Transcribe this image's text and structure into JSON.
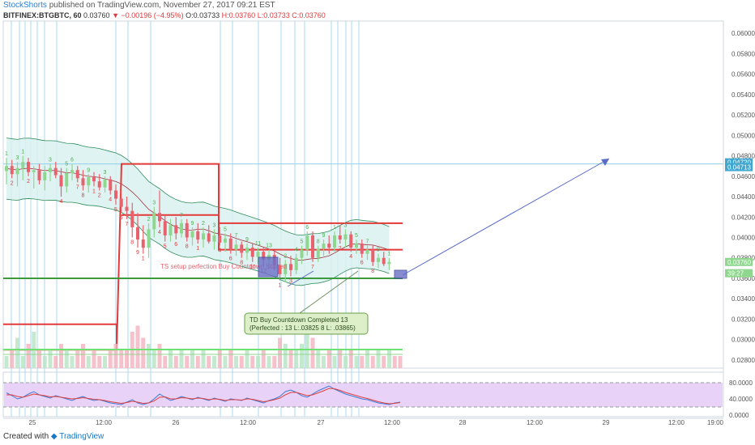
{
  "header": {
    "publisher": "StockShorts",
    "published_text": "published on TradingView.com, November 27, 2017 09:21 EST",
    "symbol": "BITFINEX:BTGBTC, 60",
    "last": "0.03760",
    "change": "▼ −0.00196 (−4.95%)",
    "open": "O:0.03733",
    "high": "H:0.03760",
    "low": "L:0.03733",
    "close": "C:0.03760"
  },
  "footer": {
    "created_with": "Created with",
    "brand": "TradingView"
  },
  "colors": {
    "up": "#8fd68f",
    "down": "#e8626e",
    "band_fill": "#d8f0f0",
    "band_line": "#2e8b57",
    "red_line": "#e23a3a",
    "green_line": "#3e9a3e",
    "vline": "#a9d9f0",
    "arrow": "#5a6bc8",
    "rsi_bg": "#e9d2f7",
    "volume": "#f4b2bd"
  },
  "chart_data": {
    "type": "candlestick",
    "symbol": "BITFINEX:BTGBTC",
    "timeframe": "60",
    "y_ticks": [
      "0.06000",
      "0.05800",
      "0.05600",
      "0.05400",
      "0.05200",
      "0.05000",
      "0.04800",
      "0.04600",
      "0.04400",
      "0.04200",
      "0.04000",
      "0.03800",
      "0.03600",
      "0.03400",
      "0.03200",
      "0.03000",
      "0.02800"
    ],
    "y_price_labels": [
      {
        "value": 0.0472,
        "text": "0.04720",
        "color": "#3fa7d0"
      },
      {
        "value": 0.04713,
        "text": "0.04713",
        "color": "#3fa7d0"
      },
      {
        "value": 0.0376,
        "text": "0.03760",
        "color": "#8fd68f"
      },
      {
        "value": 0.0365,
        "text": "39:27",
        "color": "#8fd68f"
      }
    ],
    "x_ticks": [
      "25",
      "12:00",
      "26",
      "12:00",
      "27",
      "12:00",
      "28",
      "12:00",
      "29",
      "12:00",
      "19:00"
    ],
    "candles": [
      {
        "o": 0.0465,
        "h": 0.0478,
        "l": 0.0452,
        "c": 0.047
      },
      {
        "o": 0.047,
        "h": 0.0476,
        "l": 0.0458,
        "c": 0.0462
      },
      {
        "o": 0.0462,
        "h": 0.0474,
        "l": 0.045,
        "c": 0.0468
      },
      {
        "o": 0.0468,
        "h": 0.048,
        "l": 0.0456,
        "c": 0.0474
      },
      {
        "o": 0.0474,
        "h": 0.0478,
        "l": 0.046,
        "c": 0.0464
      },
      {
        "o": 0.0464,
        "h": 0.047,
        "l": 0.0448,
        "c": 0.0466
      },
      {
        "o": 0.0466,
        "h": 0.0472,
        "l": 0.0452,
        "c": 0.0456
      },
      {
        "o": 0.0456,
        "h": 0.047,
        "l": 0.0446,
        "c": 0.0464
      },
      {
        "o": 0.0464,
        "h": 0.0472,
        "l": 0.0455,
        "c": 0.0468
      },
      {
        "o": 0.0468,
        "h": 0.0474,
        "l": 0.0458,
        "c": 0.0461
      },
      {
        "o": 0.0461,
        "h": 0.0468,
        "l": 0.044,
        "c": 0.045
      },
      {
        "o": 0.045,
        "h": 0.0468,
        "l": 0.0444,
        "c": 0.0463
      },
      {
        "o": 0.0463,
        "h": 0.0472,
        "l": 0.0456,
        "c": 0.0466
      },
      {
        "o": 0.0466,
        "h": 0.047,
        "l": 0.0454,
        "c": 0.0458
      },
      {
        "o": 0.0458,
        "h": 0.0466,
        "l": 0.0446,
        "c": 0.0451
      },
      {
        "o": 0.0451,
        "h": 0.0462,
        "l": 0.0444,
        "c": 0.0459
      },
      {
        "o": 0.0459,
        "h": 0.0464,
        "l": 0.045,
        "c": 0.0455
      },
      {
        "o": 0.0455,
        "h": 0.0462,
        "l": 0.0446,
        "c": 0.0449
      },
      {
        "o": 0.0449,
        "h": 0.046,
        "l": 0.0444,
        "c": 0.0457
      },
      {
        "o": 0.0457,
        "h": 0.046,
        "l": 0.0442,
        "c": 0.0446
      },
      {
        "o": 0.0446,
        "h": 0.0452,
        "l": 0.0432,
        "c": 0.0438
      },
      {
        "o": 0.0438,
        "h": 0.0446,
        "l": 0.0424,
        "c": 0.043
      },
      {
        "o": 0.043,
        "h": 0.044,
        "l": 0.0418,
        "c": 0.0426
      },
      {
        "o": 0.0426,
        "h": 0.0434,
        "l": 0.04,
        "c": 0.041
      },
      {
        "o": 0.041,
        "h": 0.0424,
        "l": 0.039,
        "c": 0.0398
      },
      {
        "o": 0.0398,
        "h": 0.0412,
        "l": 0.0384,
        "c": 0.039
      },
      {
        "o": 0.039,
        "h": 0.0414,
        "l": 0.038,
        "c": 0.0408
      },
      {
        "o": 0.0408,
        "h": 0.043,
        "l": 0.04,
        "c": 0.0424
      },
      {
        "o": 0.0424,
        "h": 0.0446,
        "l": 0.041,
        "c": 0.0416
      },
      {
        "o": 0.0416,
        "h": 0.0422,
        "l": 0.0396,
        "c": 0.0402
      },
      {
        "o": 0.0402,
        "h": 0.0418,
        "l": 0.0396,
        "c": 0.0412
      },
      {
        "o": 0.0412,
        "h": 0.042,
        "l": 0.0398,
        "c": 0.0404
      },
      {
        "o": 0.0404,
        "h": 0.0418,
        "l": 0.04,
        "c": 0.0414
      },
      {
        "o": 0.0414,
        "h": 0.0418,
        "l": 0.0396,
        "c": 0.04
      },
      {
        "o": 0.04,
        "h": 0.041,
        "l": 0.0392,
        "c": 0.0406
      },
      {
        "o": 0.0406,
        "h": 0.0414,
        "l": 0.0394,
        "c": 0.0398
      },
      {
        "o": 0.0398,
        "h": 0.041,
        "l": 0.039,
        "c": 0.0404
      },
      {
        "o": 0.0404,
        "h": 0.0412,
        "l": 0.0394,
        "c": 0.0396
      },
      {
        "o": 0.0396,
        "h": 0.0408,
        "l": 0.0388,
        "c": 0.0402
      },
      {
        "o": 0.0402,
        "h": 0.041,
        "l": 0.0392,
        "c": 0.0395
      },
      {
        "o": 0.0395,
        "h": 0.0404,
        "l": 0.0386,
        "c": 0.0399
      },
      {
        "o": 0.0399,
        "h": 0.0404,
        "l": 0.0384,
        "c": 0.0388
      },
      {
        "o": 0.0388,
        "h": 0.0398,
        "l": 0.0382,
        "c": 0.0393
      },
      {
        "o": 0.0393,
        "h": 0.0396,
        "l": 0.038,
        "c": 0.0385
      },
      {
        "o": 0.0385,
        "h": 0.0394,
        "l": 0.0378,
        "c": 0.039
      },
      {
        "o": 0.039,
        "h": 0.0394,
        "l": 0.0376,
        "c": 0.0381
      },
      {
        "o": 0.0381,
        "h": 0.039,
        "l": 0.0374,
        "c": 0.0386
      },
      {
        "o": 0.0386,
        "h": 0.039,
        "l": 0.0372,
        "c": 0.0378
      },
      {
        "o": 0.0378,
        "h": 0.0388,
        "l": 0.037,
        "c": 0.0383
      },
      {
        "o": 0.0383,
        "h": 0.0386,
        "l": 0.0368,
        "c": 0.0373
      },
      {
        "o": 0.0373,
        "h": 0.038,
        "l": 0.0358,
        "c": 0.0364
      },
      {
        "o": 0.0364,
        "h": 0.0378,
        "l": 0.0356,
        "c": 0.0374
      },
      {
        "o": 0.0374,
        "h": 0.0382,
        "l": 0.0362,
        "c": 0.0368
      },
      {
        "o": 0.0368,
        "h": 0.0384,
        "l": 0.0364,
        "c": 0.038
      },
      {
        "o": 0.038,
        "h": 0.0392,
        "l": 0.0374,
        "c": 0.0388
      },
      {
        "o": 0.0388,
        "h": 0.0406,
        "l": 0.0382,
        "c": 0.0402
      },
      {
        "o": 0.0402,
        "h": 0.0406,
        "l": 0.0376,
        "c": 0.038
      },
      {
        "o": 0.038,
        "h": 0.0392,
        "l": 0.0376,
        "c": 0.0389
      },
      {
        "o": 0.0389,
        "h": 0.0398,
        "l": 0.0382,
        "c": 0.0394
      },
      {
        "o": 0.0394,
        "h": 0.0402,
        "l": 0.0384,
        "c": 0.039
      },
      {
        "o": 0.039,
        "h": 0.0406,
        "l": 0.0386,
        "c": 0.0402
      },
      {
        "o": 0.0402,
        "h": 0.0412,
        "l": 0.0394,
        "c": 0.0398
      },
      {
        "o": 0.0398,
        "h": 0.0408,
        "l": 0.039,
        "c": 0.0403
      },
      {
        "o": 0.0403,
        "h": 0.0406,
        "l": 0.0386,
        "c": 0.039
      },
      {
        "o": 0.039,
        "h": 0.0398,
        "l": 0.0384,
        "c": 0.0394
      },
      {
        "o": 0.0394,
        "h": 0.0398,
        "l": 0.038,
        "c": 0.0384
      },
      {
        "o": 0.0384,
        "h": 0.0392,
        "l": 0.0378,
        "c": 0.0388
      },
      {
        "o": 0.0388,
        "h": 0.0392,
        "l": 0.0372,
        "c": 0.0376
      },
      {
        "o": 0.0376,
        "h": 0.0384,
        "l": 0.037,
        "c": 0.038
      },
      {
        "o": 0.038,
        "h": 0.0386,
        "l": 0.0372,
        "c": 0.0374
      },
      {
        "o": 0.0374,
        "h": 0.038,
        "l": 0.0368,
        "c": 0.0376
      }
    ],
    "volumes": [
      2,
      3,
      5,
      2,
      4,
      6,
      3,
      2,
      3,
      2,
      4,
      3,
      2,
      3,
      4,
      2,
      3,
      2,
      2,
      3,
      4,
      3,
      3,
      6,
      7,
      5,
      4,
      3,
      4,
      2,
      3,
      2,
      3,
      2,
      3,
      2,
      3,
      2,
      2,
      3,
      2,
      3,
      2,
      2,
      3,
      2,
      2,
      3,
      2,
      2,
      5,
      4,
      3,
      3,
      4,
      6,
      5,
      3,
      2,
      3,
      2,
      3,
      2,
      3,
      2,
      2,
      3,
      2,
      3,
      2,
      3,
      2,
      2
    ],
    "td_counts": [
      "1",
      "2",
      "3",
      "1",
      "2",
      "",
      "",
      "",
      "3",
      "",
      "4",
      "5",
      "6",
      "7",
      "8",
      "9",
      "1",
      "2",
      "3",
      "4",
      "5",
      "6",
      "7",
      "8",
      "9",
      "1",
      "2",
      "3",
      "4",
      "5",
      "",
      "6",
      "7",
      "8",
      "9",
      "1",
      "2",
      "",
      "3",
      "4",
      "5",
      "6",
      "7",
      "8",
      "9",
      "10",
      "11",
      "12",
      "13",
      "",
      "1",
      "2",
      "3",
      "4",
      "5",
      "6",
      "7",
      "8",
      "9",
      "",
      "1",
      "2",
      "3",
      "4",
      "5",
      "6",
      "7",
      "8",
      "9",
      "",
      "1",
      "2",
      "3"
    ],
    "levels": [
      {
        "name": "tdst_resistance",
        "segments": [
          [
            0.0315,
            0.0315
          ],
          [
            0.0472,
            0.0472
          ],
          [
            0.0422,
            0.0422
          ],
          [
            0.0414,
            0.0414
          ]
        ]
      },
      {
        "name": "tdst_support",
        "value": 0.036
      },
      {
        "name": "horizontal_line",
        "value": 0.0472
      },
      {
        "name": "volume_ma",
        "value": 0.029
      }
    ],
    "annotations": {
      "box_label_1": "TD Buy Countdown Completed 13",
      "box_label_2": "(Perfected : 13 L:.03825  8 L: .03865)",
      "setup_text": "TS setup perfection Buy Countdown Started"
    },
    "rsi": {
      "ticks": [
        "80.0000",
        "40.0000",
        "0.0000"
      ],
      "levels": [
        70,
        30
      ],
      "values": [
        55,
        48,
        40,
        44,
        52,
        58,
        50,
        46,
        42,
        48,
        44,
        40,
        36,
        42,
        46,
        40,
        36,
        38,
        34,
        30,
        28,
        26,
        32,
        38,
        30,
        26,
        30,
        40,
        52,
        44,
        36,
        40,
        46,
        42,
        38,
        44,
        40,
        36,
        42,
        38,
        34,
        40,
        38,
        36,
        42,
        38,
        34,
        30,
        36,
        40,
        46,
        58,
        62,
        56,
        48,
        44,
        52,
        60,
        66,
        72,
        64,
        58,
        52,
        48,
        44,
        40,
        38,
        34,
        30,
        28,
        26,
        30,
        32
      ],
      "signal": [
        50,
        50,
        46,
        44,
        48,
        52,
        50,
        48,
        45,
        46,
        44,
        42,
        40,
        41,
        43,
        41,
        39,
        38,
        36,
        33,
        31,
        29,
        31,
        34,
        32,
        29,
        30,
        35,
        44,
        45,
        40,
        40,
        43,
        42,
        40,
        42,
        41,
        38,
        40,
        39,
        36,
        38,
        38,
        37,
        40,
        39,
        36,
        33,
        35,
        38,
        42,
        50,
        56,
        56,
        52,
        48,
        50,
        55,
        60,
        66,
        65,
        61,
        56,
        52,
        48,
        44,
        41,
        37,
        33,
        30,
        28,
        29,
        31
      ]
    }
  }
}
